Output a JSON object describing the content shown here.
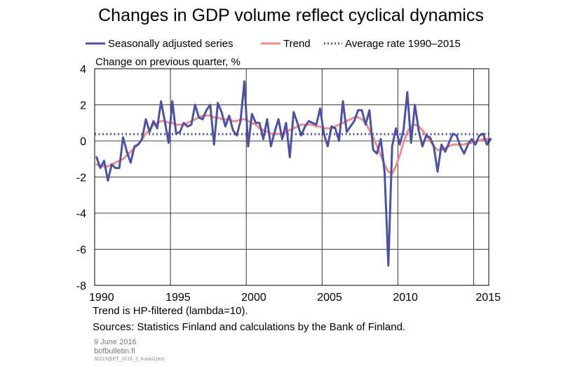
{
  "chart_data": {
    "type": "line",
    "title": "Changes in GDP volume reflect cyclical dynamics",
    "ylabel": "Change on previous quarter, %",
    "xlim": [
      1989.5,
      2015.5
    ],
    "ylim": [
      -8,
      4
    ],
    "yticks": [
      4,
      2,
      0,
      -2,
      -4,
      -6,
      -8
    ],
    "ytick_labels": [
      "4",
      "2",
      "0",
      "-2",
      "-4",
      "-6",
      "-8"
    ],
    "xticks": [
      1990,
      1995,
      2000,
      2005,
      2010,
      2015
    ],
    "xtick_labels": [
      "1990",
      "1995",
      "2000",
      "2005",
      "2010",
      "2015"
    ],
    "grid": true,
    "legend": [
      {
        "name": "Seasonally adjusted series",
        "color": "#4b52a0",
        "style": "solid"
      },
      {
        "name": "Trend",
        "color": "#f08c8c",
        "style": "solid"
      },
      {
        "name": "Average rate 1990–2015",
        "color": "#4b52a0",
        "style": "dotted"
      }
    ],
    "series": [
      {
        "name": "Seasonally adjusted series",
        "color": "#4b52a0",
        "x_start": 1989.625,
        "x_step": 0.25,
        "values": [
          -0.9,
          -1.5,
          -1.1,
          -2.2,
          -1.3,
          -1.5,
          -1.5,
          0.2,
          -0.6,
          -1.2,
          -0.3,
          -0.2,
          0.1,
          1.2,
          0.5,
          1.1,
          0.7,
          2.2,
          1.1,
          -0.1,
          2.2,
          0.4,
          0.5,
          1.0,
          0.8,
          0.9,
          2.0,
          1.3,
          1.2,
          1.7,
          2.0,
          -0.2,
          2.1,
          1.6,
          0.8,
          1.4,
          0.6,
          0.3,
          1.1,
          3.3,
          -0.3,
          1.5,
          1.0,
          1.0,
          0.1,
          1.2,
          -0.3,
          0.5,
          1.2,
          0.1,
          1.0,
          -0.9,
          1.6,
          1.0,
          0.3,
          0.8,
          1.1,
          1.0,
          0.9,
          1.8,
          0.4,
          -0.3,
          0.8,
          0.7,
          0.0,
          2.2,
          0.5,
          0.8,
          1.1,
          1.7,
          1.7,
          0.9,
          1.7,
          -0.5,
          -0.7,
          0.1,
          -1.7,
          -6.9,
          -0.3,
          0.7,
          -0.2,
          0.6,
          2.7,
          -0.1,
          2.0,
          0.6,
          -0.3,
          0.3,
          0.2,
          -0.3,
          -1.7,
          -0.2,
          -0.6,
          -0.1,
          0.4,
          0.3,
          -0.3,
          -0.7,
          -0.2,
          0.1,
          -0.2,
          0.3,
          0.4,
          -0.2,
          0.1
        ]
      },
      {
        "name": "Trend",
        "color": "#f08c8c",
        "x_start": 1989.625,
        "x_step": 0.25,
        "values": [
          -1.3,
          -1.4,
          -1.4,
          -1.4,
          -1.3,
          -1.2,
          -1.1,
          -1.0,
          -0.8,
          -0.6,
          -0.4,
          -0.2,
          0.1,
          0.4,
          0.6,
          0.9,
          1.0,
          1.1,
          1.1,
          1.0,
          1.0,
          0.9,
          0.9,
          0.9,
          1.0,
          1.1,
          1.2,
          1.3,
          1.4,
          1.4,
          1.4,
          1.3,
          1.3,
          1.2,
          1.2,
          1.2,
          1.1,
          1.1,
          1.2,
          1.2,
          1.1,
          1.0,
          0.9,
          0.7,
          0.6,
          0.5,
          0.4,
          0.4,
          0.4,
          0.4,
          0.5,
          0.6,
          0.7,
          0.8,
          0.9,
          0.9,
          0.9,
          0.9,
          0.8,
          0.8,
          0.7,
          0.7,
          0.7,
          0.8,
          0.9,
          1.0,
          1.1,
          1.2,
          1.3,
          1.3,
          1.2,
          1.0,
          0.6,
          0.2,
          -0.3,
          -0.8,
          -1.3,
          -1.7,
          -1.8,
          -1.4,
          -0.8,
          -0.1,
          0.5,
          0.8,
          0.9,
          0.8,
          0.6,
          0.3,
          0.0,
          -0.3,
          -0.5,
          -0.5,
          -0.4,
          -0.3,
          -0.2,
          -0.2,
          -0.2,
          -0.2,
          -0.1,
          -0.1,
          0.0,
          0.0,
          0.1,
          0.1,
          0.1
        ]
      },
      {
        "name": "Average rate 1990–2015",
        "color": "#4b52a0",
        "constant": 0.38
      }
    ]
  },
  "footer": {
    "trend_note": "Trend is HP-filtered (lambda=10).",
    "sources": "Sources: Statistics Finland and calculations by the Bank of Finland.",
    "date": "9 June 2016",
    "site": "bofbulletin.fi",
    "code": "30219@ET_2016_3_Kuvio1(en)"
  }
}
